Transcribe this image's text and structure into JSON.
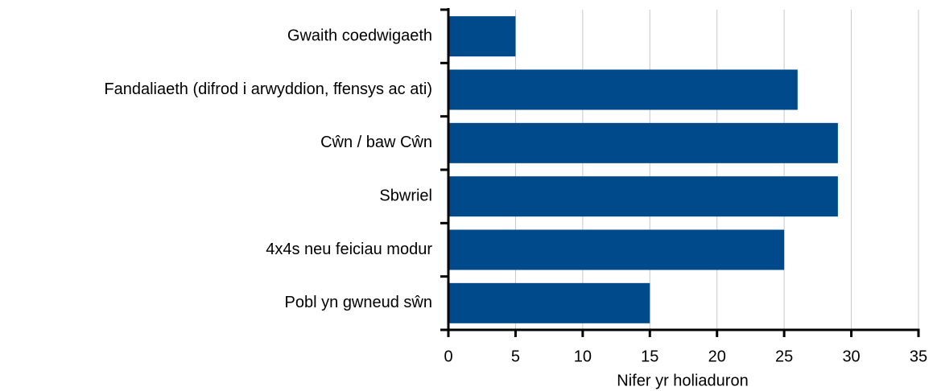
{
  "chart_data": {
    "type": "barh",
    "categories": [
      "Gwaith coedwigaeth",
      "Fandaliaeth (difrod i arwyddion, ffensys ac ati)",
      "Cŵn / baw Cŵn",
      "Sbwriel",
      "4x4s neu feiciau modur",
      "Pobl yn gwneud sŵn"
    ],
    "values": [
      5,
      26,
      29,
      29,
      25,
      15
    ],
    "color": "#004a8c",
    "x_label": "Nifer yr holiaduron",
    "xlim": [
      0,
      35
    ],
    "xticks": [
      0,
      5,
      10,
      15,
      20,
      25,
      30,
      35
    ],
    "grid": true
  }
}
